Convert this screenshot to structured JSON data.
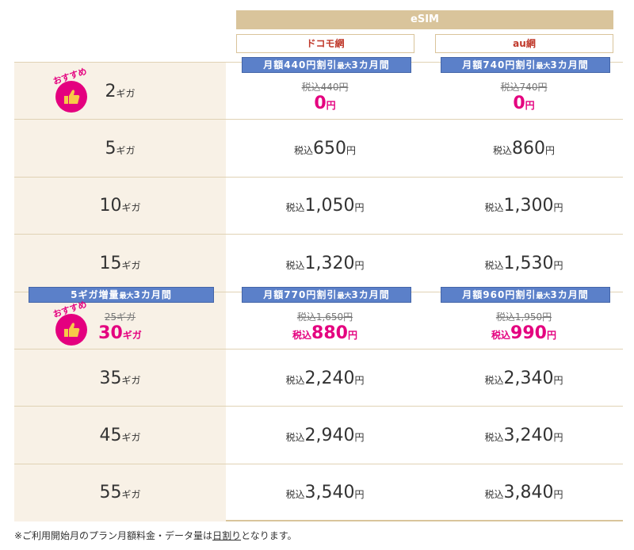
{
  "header": {
    "title": "eSIM",
    "columns": [
      "ドコモ網",
      "au網"
    ]
  },
  "badge": "おすすめ",
  "rows": [
    {
      "recommended": true,
      "data": {
        "amount": "2",
        "unit": "ギガ"
      },
      "cells": [
        {
          "banner": [
            "月額440円割引",
            "最大",
            "3カ月間"
          ],
          "original": "税込440円",
          "amount": "0",
          "suffix": "円"
        },
        {
          "banner": [
            "月額740円割引",
            "最大",
            "3カ月間"
          ],
          "original": "税込740円",
          "amount": "0",
          "suffix": "円"
        }
      ]
    },
    {
      "data": {
        "amount": "5",
        "unit": "ギガ"
      },
      "cells": [
        {
          "prefix": "税込",
          "amount": "650",
          "suffix": "円"
        },
        {
          "prefix": "税込",
          "amount": "860",
          "suffix": "円"
        }
      ]
    },
    {
      "data": {
        "amount": "10",
        "unit": "ギガ"
      },
      "cells": [
        {
          "prefix": "税込",
          "amount": "1,050",
          "suffix": "円"
        },
        {
          "prefix": "税込",
          "amount": "1,300",
          "suffix": "円"
        }
      ]
    },
    {
      "data": {
        "amount": "15",
        "unit": "ギガ"
      },
      "cells": [
        {
          "prefix": "税込",
          "amount": "1,320",
          "suffix": "円"
        },
        {
          "prefix": "税込",
          "amount": "1,530",
          "suffix": "円"
        }
      ]
    },
    {
      "recommended": true,
      "data": {
        "banner": [
          "5ギガ増量",
          "最大",
          "3カ月間"
        ],
        "original": "25ギガ",
        "amount": "30",
        "unit": "ギガ"
      },
      "cells": [
        {
          "banner": [
            "月額770円割引",
            "最大",
            "3カ月間"
          ],
          "original": "税込1,650円",
          "prefix": "税込",
          "amount": "880",
          "suffix": "円"
        },
        {
          "banner": [
            "月額960円割引",
            "最大",
            "3カ月間"
          ],
          "original": "税込1,950円",
          "prefix": "税込",
          "amount": "990",
          "suffix": "円"
        }
      ]
    },
    {
      "data": {
        "amount": "35",
        "unit": "ギガ"
      },
      "cells": [
        {
          "prefix": "税込",
          "amount": "2,240",
          "suffix": "円"
        },
        {
          "prefix": "税込",
          "amount": "2,340",
          "suffix": "円"
        }
      ]
    },
    {
      "data": {
        "amount": "45",
        "unit": "ギガ"
      },
      "cells": [
        {
          "prefix": "税込",
          "amount": "2,940",
          "suffix": "円"
        },
        {
          "prefix": "税込",
          "amount": "3,240",
          "suffix": "円"
        }
      ]
    },
    {
      "data": {
        "amount": "55",
        "unit": "ギガ"
      },
      "cells": [
        {
          "prefix": "税込",
          "amount": "3,540",
          "suffix": "円"
        },
        {
          "prefix": "税込",
          "amount": "3,840",
          "suffix": "円"
        }
      ]
    }
  ],
  "footnote": [
    "※ご利用開始月のプラン月額料金・データ量は",
    "日割り",
    "となります。"
  ]
}
